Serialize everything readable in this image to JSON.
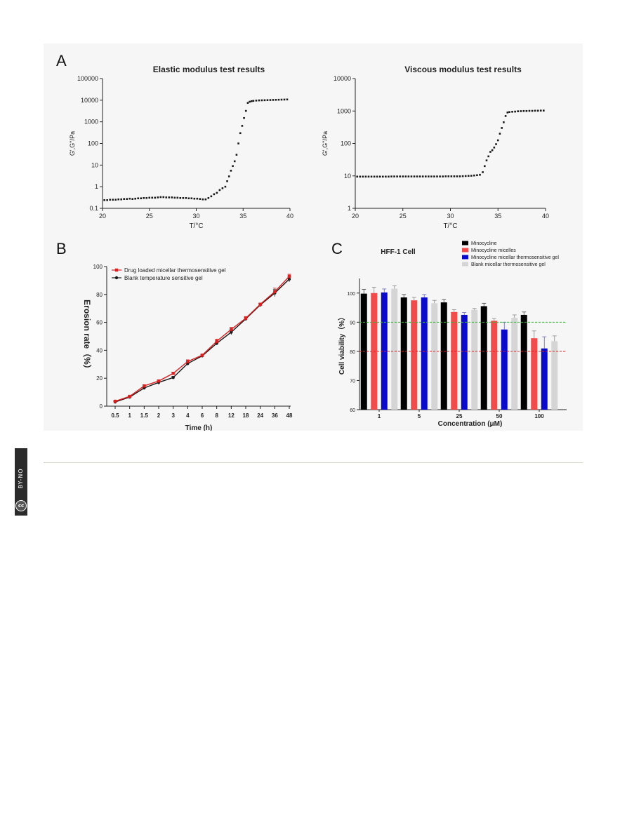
{
  "panels": {
    "a_letter": "A",
    "b_letter": "B",
    "c_letter": "C"
  },
  "chart_data": [
    {
      "type": "scatter",
      "title": "Elastic modulus test results",
      "xlabel": "T/°C",
      "ylabel": "G',G''/Pa",
      "xlim": [
        20,
        40
      ],
      "ylim": [
        0.1,
        100000
      ],
      "yscale": "log",
      "xticks": [
        "20",
        "25",
        "30",
        "35",
        "40"
      ],
      "yticks": [
        "0.1",
        "1",
        "10",
        "100",
        "1000",
        "10000",
        "100000"
      ],
      "series": [
        {
          "name": "G'",
          "x": [
            20.2,
            20.5,
            20.8,
            21.1,
            21.4,
            21.7,
            22.0,
            22.3,
            22.6,
            22.9,
            23.2,
            23.5,
            23.8,
            24.1,
            24.4,
            24.7,
            25.0,
            25.3,
            25.6,
            25.9,
            26.2,
            26.5,
            26.8,
            27.1,
            27.4,
            27.7,
            28.0,
            28.3,
            28.6,
            28.9,
            29.2,
            29.5,
            29.8,
            30.1,
            30.4,
            30.7,
            31.0,
            31.3,
            31.6,
            31.9,
            32.2,
            32.5,
            32.8,
            33.1,
            33.3,
            33.5,
            33.7,
            33.9,
            34.1,
            34.3,
            34.5,
            34.7,
            34.9,
            35.1,
            35.3,
            35.5,
            35.7,
            35.9,
            36.1,
            36.4,
            36.7,
            37.0,
            37.3,
            37.6,
            37.9,
            38.2,
            38.5,
            38.8,
            39.1,
            39.4,
            39.7
          ],
          "y": [
            0.24,
            0.24,
            0.25,
            0.25,
            0.25,
            0.26,
            0.26,
            0.27,
            0.27,
            0.28,
            0.27,
            0.28,
            0.29,
            0.29,
            0.3,
            0.3,
            0.31,
            0.31,
            0.31,
            0.32,
            0.33,
            0.33,
            0.32,
            0.32,
            0.32,
            0.31,
            0.31,
            0.3,
            0.3,
            0.3,
            0.29,
            0.29,
            0.28,
            0.28,
            0.27,
            0.26,
            0.26,
            0.3,
            0.36,
            0.45,
            0.52,
            0.7,
            0.85,
            1.0,
            1.8,
            3.0,
            5.5,
            9,
            15,
            30,
            100,
            300,
            650,
            1500,
            3200,
            7500,
            8500,
            9000,
            9300,
            9600,
            9800,
            9900,
            10000,
            10100,
            10200,
            10300,
            10400,
            10500,
            10600,
            10700,
            10800
          ],
          "color": "#1a1a1a"
        }
      ]
    },
    {
      "type": "scatter",
      "title": "Viscous modulus test results",
      "xlabel": "T/°C",
      "ylabel": "G',G''/Pa",
      "xlim": [
        20,
        40
      ],
      "ylim": [
        1,
        10000
      ],
      "yscale": "log",
      "xticks": [
        "20",
        "25",
        "30",
        "35",
        "40"
      ],
      "yticks": [
        "1",
        "10",
        "100",
        "1000",
        "10000"
      ],
      "series": [
        {
          "name": "G''",
          "x": [
            20.2,
            20.5,
            20.8,
            21.1,
            21.4,
            21.7,
            22.0,
            22.3,
            22.6,
            22.9,
            23.2,
            23.5,
            23.8,
            24.1,
            24.4,
            24.7,
            25.0,
            25.3,
            25.6,
            25.9,
            26.2,
            26.5,
            26.8,
            27.1,
            27.4,
            27.7,
            28.0,
            28.3,
            28.6,
            28.9,
            29.2,
            29.5,
            29.8,
            30.1,
            30.4,
            30.7,
            31.0,
            31.3,
            31.6,
            31.9,
            32.2,
            32.5,
            32.8,
            33.1,
            33.4,
            33.6,
            33.8,
            34.0,
            34.2,
            34.4,
            34.6,
            34.8,
            35.0,
            35.2,
            35.4,
            35.6,
            35.8,
            36.0,
            36.2,
            36.5,
            36.8,
            37.1,
            37.4,
            37.7,
            38.0,
            38.3,
            38.6,
            38.9,
            39.2,
            39.5,
            39.8
          ],
          "y": [
            9.5,
            9.5,
            9.5,
            9.5,
            9.5,
            9.5,
            9.5,
            9.5,
            9.5,
            9.5,
            9.5,
            9.5,
            9.6,
            9.6,
            9.6,
            9.6,
            9.6,
            9.6,
            9.6,
            9.6,
            9.6,
            9.6,
            9.6,
            9.6,
            9.6,
            9.6,
            9.6,
            9.6,
            9.6,
            9.6,
            9.6,
            9.7,
            9.7,
            9.7,
            9.7,
            9.7,
            9.7,
            9.8,
            9.9,
            10.0,
            10.1,
            10.3,
            10.5,
            10.8,
            13,
            20,
            30,
            40,
            55,
            62,
            75,
            95,
            125,
            200,
            300,
            450,
            700,
            900,
            930,
            950,
            960,
            980,
            990,
            1000,
            1000,
            1010,
            1010,
            1020,
            1020,
            1030,
            1030
          ],
          "color": "#1a1a1a"
        }
      ]
    },
    {
      "type": "line",
      "title": "",
      "xlabel": "Time (h)",
      "ylabel": "Erosion rate（%）",
      "categories": [
        "0.5",
        "1",
        "1.5",
        "2",
        "3",
        "4",
        "6",
        "8",
        "12",
        "18",
        "24",
        "36",
        "48"
      ],
      "ylim": [
        0,
        100
      ],
      "yticks": [
        "0",
        "20",
        "40",
        "60",
        "80",
        "100"
      ],
      "series": [
        {
          "name": "Drug loaded micellar thermosensitive gel",
          "values": [
            3.5,
            7,
            14.5,
            18,
            23.5,
            32,
            36.5,
            46.5,
            55,
            63,
            73,
            82,
            93
          ],
          "error": [
            0.5,
            0.6,
            0.8,
            0.9,
            0.8,
            1.2,
            0.8,
            1.5,
            1.5,
            1.2,
            0.8,
            2.5,
            1.5
          ],
          "color": "#e02020"
        },
        {
          "name": "Blank temperature sensitive gel",
          "values": [
            3,
            6.5,
            13,
            17,
            20.5,
            30.5,
            36,
            45,
            53,
            62.5,
            72.5,
            81,
            91
          ],
          "error": [
            0.5,
            0.6,
            0.8,
            1.5,
            0.8,
            1.2,
            0.8,
            1.2,
            1.8,
            1.2,
            0.8,
            2.5,
            2
          ],
          "color": "#1a1a1a"
        }
      ]
    },
    {
      "type": "bar",
      "title": "HFF-1 Cell",
      "xlabel": "Concentration (μM)",
      "ylabel": "Cell viability（%）",
      "categories": [
        "1",
        "5",
        "25",
        "50",
        "100"
      ],
      "ylim": [
        60,
        105
      ],
      "yticks": [
        "60",
        "70",
        "80",
        "90",
        "100"
      ],
      "reference_lines": [
        {
          "y": 90,
          "color": "#33bb33"
        },
        {
          "y": 80,
          "color": "#e82020"
        }
      ],
      "series": [
        {
          "name": "Minocycline",
          "values": [
            99.8,
            98.5,
            96.8,
            95.5,
            92.5
          ],
          "error": [
            1.5,
            1.0,
            1.0,
            1.0,
            1.0
          ],
          "color": "#000000"
        },
        {
          "name": "Minocycline micelles",
          "values": [
            100.0,
            97.5,
            93.5,
            90.5,
            84.5
          ],
          "error": [
            2.0,
            1.0,
            0.8,
            0.8,
            2.5
          ],
          "color": "#f24b4b"
        },
        {
          "name": "Minocycline micellar thermosensitive gel",
          "values": [
            100.2,
            98.5,
            92.5,
            87.5,
            81.0
          ],
          "error": [
            1.2,
            1.0,
            0.8,
            2.5,
            4.0
          ],
          "color": "#0a0acc"
        },
        {
          "name": "Blank micellar thermosensitive gel",
          "values": [
            101.5,
            96.5,
            94.2,
            91.5,
            83.5
          ],
          "error": [
            1.0,
            1.0,
            0.5,
            1.0,
            1.8
          ],
          "color": "#d5d5d5"
        }
      ]
    }
  ],
  "license": {
    "badge": "cc",
    "text": "BY-NO"
  }
}
